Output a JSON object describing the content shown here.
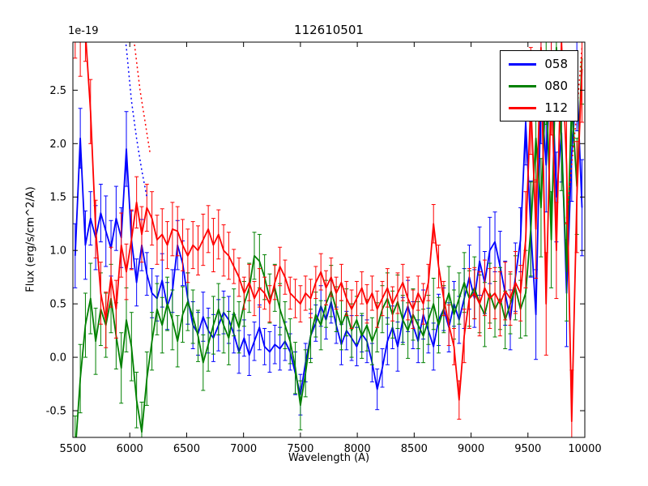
{
  "figure": {
    "background": "#ffffff"
  },
  "chart_data": {
    "type": "line",
    "title": "112610501",
    "xlabel": "Wavelength (A)",
    "ylabel": "Flux (erg/s/cm^2/A)",
    "y_offset_label": "1e-19",
    "xlim": [
      5500,
      10000
    ],
    "ylim": [
      -0.75,
      2.95
    ],
    "xticks": [
      "5500",
      "6000",
      "6500",
      "7000",
      "7500",
      "8000",
      "8500",
      "9000",
      "9500",
      "10000"
    ],
    "yticks": [
      "-0.5",
      "0.0",
      "0.5",
      "1.0",
      "1.5",
      "2.0",
      "2.5"
    ],
    "legend_position": "upper right",
    "grid": false,
    "error_bars": true,
    "x": [
      5520,
      5565,
      5610,
      5655,
      5700,
      5745,
      5790,
      5835,
      5880,
      5925,
      5970,
      6015,
      6060,
      6105,
      6150,
      6195,
      6240,
      6285,
      6330,
      6375,
      6420,
      6465,
      6510,
      6555,
      6600,
      6645,
      6690,
      6735,
      6780,
      6825,
      6870,
      6915,
      6960,
      7005,
      7050,
      7095,
      7140,
      7185,
      7230,
      7275,
      7320,
      7365,
      7410,
      7455,
      7500,
      7545,
      7590,
      7635,
      7680,
      7725,
      7770,
      7815,
      7860,
      7905,
      7950,
      7995,
      8040,
      8085,
      8130,
      8175,
      8220,
      8265,
      8310,
      8355,
      8400,
      8445,
      8490,
      8535,
      8580,
      8625,
      8670,
      8715,
      8760,
      8805,
      8850,
      8895,
      8940,
      8985,
      9030,
      9075,
      9120,
      9165,
      9210,
      9255,
      9300,
      9345,
      9390,
      9435,
      9480,
      9525,
      9570,
      9615,
      9660,
      9705,
      9750,
      9795,
      9840,
      9885,
      9930,
      9975
    ],
    "series": [
      {
        "name": "058",
        "color": "#0000ff",
        "y": [
          0.95,
          2.05,
          1.05,
          1.3,
          1.12,
          1.35,
          1.18,
          1.02,
          1.3,
          1.12,
          1.95,
          1.1,
          0.7,
          1.05,
          0.78,
          0.6,
          0.55,
          0.72,
          0.48,
          0.62,
          1.05,
          0.88,
          0.55,
          0.3,
          0.22,
          0.38,
          0.25,
          0.18,
          0.3,
          0.42,
          0.35,
          0.22,
          0.05,
          0.18,
          0.02,
          0.15,
          0.28,
          0.1,
          0.05,
          0.12,
          0.08,
          0.15,
          0.05,
          -0.15,
          -0.35,
          -0.05,
          0.2,
          0.32,
          0.48,
          0.35,
          0.52,
          0.3,
          0.12,
          0.25,
          0.18,
          0.1,
          0.22,
          0.15,
          -0.05,
          -0.3,
          -0.1,
          0.15,
          0.28,
          0.1,
          0.35,
          0.48,
          0.3,
          0.15,
          0.4,
          0.25,
          0.1,
          0.35,
          0.45,
          0.28,
          0.5,
          0.35,
          0.55,
          0.75,
          0.55,
          0.9,
          0.7,
          1.0,
          1.08,
          0.85,
          0.6,
          0.35,
          0.75,
          1.1,
          2.2,
          1.2,
          0.4,
          2.5,
          1.8,
          2.85,
          1.5,
          2.1,
          0.6,
          1.9,
          2.6,
          1.4
        ],
        "err": [
          0.3,
          0.28,
          0.32,
          0.25,
          0.3,
          0.27,
          0.33,
          0.26,
          0.3,
          0.28,
          0.35,
          0.27,
          0.22,
          0.24,
          0.2,
          0.23,
          0.21,
          0.25,
          0.22,
          0.2,
          0.23,
          0.21,
          0.24,
          0.22,
          0.2,
          0.23,
          0.21,
          0.22,
          0.24,
          0.2,
          0.22,
          0.18,
          0.2,
          0.17,
          0.19,
          0.18,
          0.21,
          0.17,
          0.19,
          0.18,
          0.2,
          0.18,
          0.17,
          0.2,
          0.19,
          0.18,
          0.21,
          0.17,
          0.19,
          0.18,
          0.2,
          0.17,
          0.19,
          0.18,
          0.21,
          0.18,
          0.17,
          0.2,
          0.18,
          0.19,
          0.18,
          0.22,
          0.2,
          0.23,
          0.21,
          0.24,
          0.22,
          0.2,
          0.23,
          0.21,
          0.22,
          0.24,
          0.2,
          0.23,
          0.21,
          0.22,
          0.28,
          0.3,
          0.27,
          0.32,
          0.29,
          0.31,
          0.28,
          0.33,
          0.3,
          0.28,
          0.32,
          0.3,
          0.4,
          0.45,
          0.42,
          0.5,
          0.44,
          0.48,
          0.42,
          0.46,
          0.5,
          0.44,
          0.48,
          0.45
        ]
      },
      {
        "name": "080",
        "color": "#008000",
        "y": [
          -0.9,
          -0.2,
          0.3,
          0.55,
          0.15,
          0.45,
          0.3,
          0.55,
          0.2,
          -0.1,
          0.35,
          0.1,
          -0.4,
          -0.7,
          -0.2,
          0.15,
          0.45,
          0.3,
          0.5,
          0.35,
          0.15,
          0.4,
          0.52,
          0.38,
          0.2,
          -0.05,
          0.12,
          0.3,
          0.45,
          0.3,
          0.18,
          0.42,
          0.28,
          0.5,
          0.65,
          0.95,
          0.9,
          0.75,
          0.55,
          0.65,
          0.45,
          0.3,
          0.15,
          -0.1,
          -0.45,
          -0.15,
          0.2,
          0.4,
          0.3,
          0.5,
          0.62,
          0.45,
          0.3,
          0.42,
          0.25,
          0.35,
          0.2,
          0.3,
          0.15,
          0.28,
          0.45,
          0.55,
          0.4,
          0.52,
          0.35,
          0.25,
          0.4,
          0.3,
          0.2,
          0.35,
          0.5,
          0.3,
          0.45,
          0.6,
          0.4,
          0.55,
          0.7,
          0.55,
          0.65,
          0.5,
          0.4,
          0.6,
          0.45,
          0.55,
          0.35,
          0.5,
          0.65,
          0.45,
          0.6,
          1.2,
          2.05,
          1.4,
          2.6,
          1.1,
          2.9,
          2.0,
          0.8,
          2.4,
          1.6,
          2.8
        ],
        "err": [
          0.35,
          0.32,
          0.3,
          0.33,
          0.31,
          0.34,
          0.3,
          0.32,
          0.31,
          0.33,
          0.3,
          0.32,
          0.26,
          0.28,
          0.25,
          0.27,
          0.24,
          0.26,
          0.25,
          0.28,
          0.24,
          0.26,
          0.27,
          0.25,
          0.24,
          0.26,
          0.25,
          0.27,
          0.24,
          0.26,
          0.25,
          0.22,
          0.24,
          0.21,
          0.23,
          0.22,
          0.25,
          0.21,
          0.23,
          0.22,
          0.24,
          0.22,
          0.21,
          0.24,
          0.23,
          0.22,
          0.25,
          0.21,
          0.23,
          0.22,
          0.24,
          0.21,
          0.23,
          0.22,
          0.25,
          0.22,
          0.21,
          0.24,
          0.22,
          0.23,
          0.22,
          0.24,
          0.22,
          0.25,
          0.23,
          0.26,
          0.24,
          0.22,
          0.25,
          0.23,
          0.24,
          0.26,
          0.22,
          0.25,
          0.23,
          0.24,
          0.28,
          0.26,
          0.29,
          0.27,
          0.3,
          0.28,
          0.26,
          0.29,
          0.27,
          0.28,
          0.3,
          0.27,
          0.4,
          0.44,
          0.41,
          0.46,
          0.42,
          0.45,
          0.4,
          0.44,
          0.46,
          0.42,
          0.45,
          0.43
        ]
      },
      {
        "name": "112",
        "color": "#ff0000",
        "y": [
          3.1,
          2.95,
          3.05,
          2.3,
          1.2,
          0.6,
          0.35,
          0.75,
          0.45,
          1.05,
          0.8,
          1.1,
          1.45,
          1.15,
          1.4,
          1.3,
          1.1,
          1.15,
          1.05,
          1.2,
          1.18,
          1.05,
          0.95,
          1.05,
          1.0,
          1.1,
          1.2,
          1.05,
          1.15,
          1.0,
          0.95,
          0.85,
          0.75,
          0.6,
          0.7,
          0.55,
          0.65,
          0.6,
          0.5,
          0.7,
          0.85,
          0.75,
          0.6,
          0.55,
          0.5,
          0.6,
          0.55,
          0.7,
          0.8,
          0.65,
          0.75,
          0.6,
          0.7,
          0.55,
          0.45,
          0.55,
          0.65,
          0.5,
          0.6,
          0.45,
          0.55,
          0.65,
          0.5,
          0.6,
          0.7,
          0.55,
          0.45,
          0.6,
          0.5,
          0.7,
          1.25,
          0.85,
          0.55,
          0.3,
          0.1,
          -0.4,
          0.2,
          0.55,
          0.6,
          0.5,
          0.65,
          0.55,
          0.6,
          0.5,
          0.62,
          0.55,
          0.7,
          0.6,
          1.1,
          2.4,
          1.2,
          2.9,
          0.5,
          2.6,
          1.0,
          2.95,
          1.8,
          -0.6,
          1.5,
          2.7
        ],
        "err": [
          0.3,
          0.32,
          0.28,
          0.3,
          0.27,
          0.29,
          0.26,
          0.28,
          0.27,
          0.3,
          0.26,
          0.28,
          0.24,
          0.26,
          0.22,
          0.25,
          0.23,
          0.24,
          0.22,
          0.25,
          0.23,
          0.24,
          0.25,
          0.22,
          0.23,
          0.24,
          0.22,
          0.25,
          0.23,
          0.24,
          0.22,
          0.16,
          0.18,
          0.15,
          0.17,
          0.16,
          0.18,
          0.15,
          0.17,
          0.16,
          0.18,
          0.16,
          0.15,
          0.18,
          0.17,
          0.16,
          0.18,
          0.15,
          0.17,
          0.16,
          0.18,
          0.15,
          0.17,
          0.16,
          0.18,
          0.16,
          0.15,
          0.18,
          0.16,
          0.17,
          0.16,
          0.18,
          0.16,
          0.19,
          0.17,
          0.2,
          0.18,
          0.16,
          0.19,
          0.17,
          0.18,
          0.2,
          0.16,
          0.19,
          0.17,
          0.18,
          0.25,
          0.28,
          0.24,
          0.3,
          0.26,
          0.28,
          0.24,
          0.3,
          0.27,
          0.25,
          0.29,
          0.26,
          0.45,
          0.5,
          0.46,
          0.55,
          0.48,
          0.52,
          0.45,
          0.5,
          0.55,
          0.48,
          0.52,
          0.5
        ]
      }
    ],
    "dotted_segments": [
      {
        "series": "058",
        "color": "#0000ff",
        "x": [
          5925,
          5970,
          6015,
          6060,
          6105,
          6150
        ],
        "y": [
          3.3,
          2.9,
          2.4,
          2.05,
          1.75,
          1.5
        ]
      },
      {
        "series": "112",
        "color": "#ff0000",
        "x": [
          6000,
          6045,
          6090,
          6135,
          6180
        ],
        "y": [
          3.3,
          2.9,
          2.5,
          2.2,
          1.9
        ]
      },
      {
        "series": "112",
        "color": "#ff0000",
        "x": [
          9840,
          9885,
          9930,
          9975
        ],
        "y": [
          1.3,
          1.8,
          2.3,
          2.9
        ]
      }
    ]
  }
}
